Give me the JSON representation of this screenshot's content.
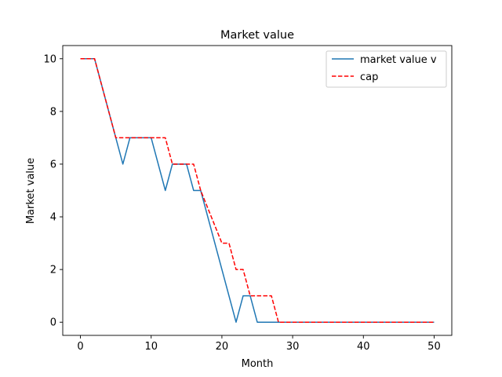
{
  "chart_data": {
    "type": "line",
    "title": "Market value",
    "xlabel": "Month",
    "ylabel": "Market value",
    "xlim": [
      -2.5,
      52.5
    ],
    "ylim": [
      -0.5,
      10.5
    ],
    "xticks": [
      0,
      10,
      20,
      30,
      40,
      50
    ],
    "yticks": [
      0,
      2,
      4,
      6,
      8,
      10
    ],
    "grid": false,
    "legend_position": "top-right",
    "series": [
      {
        "name": "market value v",
        "color": "#1f77b4",
        "style": "solid",
        "x": [
          0,
          2,
          5,
          6,
          7,
          10,
          12,
          13,
          15,
          16,
          17,
          22,
          23,
          24,
          25,
          50
        ],
        "y": [
          10,
          10,
          7,
          6,
          7,
          7,
          5,
          6,
          6,
          5,
          5,
          0,
          1,
          1,
          0,
          0
        ]
      },
      {
        "name": "cap",
        "color": "#ff0000",
        "style": "dashed",
        "x": [
          0,
          2,
          5,
          12,
          13,
          16,
          17,
          20,
          21,
          22,
          23,
          24,
          27,
          28,
          50
        ],
        "y": [
          10,
          10,
          7,
          7,
          6,
          6,
          5,
          3,
          3,
          2,
          2,
          1,
          1,
          0,
          0
        ]
      }
    ]
  }
}
